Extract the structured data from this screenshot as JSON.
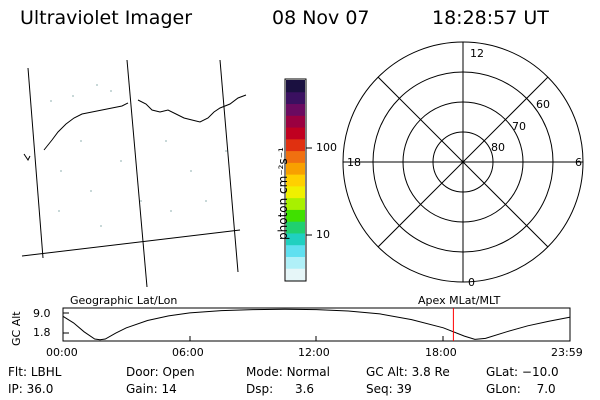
{
  "header": {
    "title": "Ultraviolet Imager",
    "date": "08 Nov 07",
    "time": "18:28:57 UT"
  },
  "colorbar": {
    "unit_label": "photon cm⁻²s⁻¹",
    "ticks": [
      "100",
      "10"
    ],
    "colors": [
      "#1a1040",
      "#3a1060",
      "#6a0a60",
      "#9a0040",
      "#c00020",
      "#e03010",
      "#f07010",
      "#f8a000",
      "#ffd000",
      "#f0f000",
      "#a8f000",
      "#40e000",
      "#20d070",
      "#20d0c0",
      "#60e0f0",
      "#b0f0f8",
      "#e6f6f8"
    ]
  },
  "polar_plot": {
    "mlt_labels": [
      "12",
      "18",
      "6",
      "0"
    ],
    "lat_labels": [
      "60",
      "70",
      "80"
    ]
  },
  "timeline": {
    "left_caption": "Geographic Lat/Lon",
    "right_caption": "Apex MLat/MLT",
    "axis_title": "GC Alt",
    "y_ticks": [
      "9.0",
      "1.8"
    ],
    "x_ticks": [
      "00:00",
      "06:00",
      "12:00",
      "18:00",
      "23:59"
    ],
    "marker_color": "#ff0000",
    "altitude_curve": [
      {
        "t": 0.0,
        "alt": 7.5
      },
      {
        "t": 0.5,
        "alt": 5.5
      },
      {
        "t": 1.0,
        "alt": 2.8
      },
      {
        "t": 1.5,
        "alt": 0.6
      },
      {
        "t": 1.75,
        "alt": 0.4
      },
      {
        "t": 2.0,
        "alt": 0.6
      },
      {
        "t": 2.5,
        "alt": 2.4
      },
      {
        "t": 3.0,
        "alt": 4.0
      },
      {
        "t": 4.0,
        "alt": 6.2
      },
      {
        "t": 5.0,
        "alt": 7.6
      },
      {
        "t": 6.0,
        "alt": 8.5
      },
      {
        "t": 7.5,
        "alt": 9.2
      },
      {
        "t": 9.0,
        "alt": 9.5
      },
      {
        "t": 10.5,
        "alt": 9.6
      },
      {
        "t": 12.0,
        "alt": 9.5
      },
      {
        "t": 13.5,
        "alt": 9.1
      },
      {
        "t": 15.0,
        "alt": 8.2
      },
      {
        "t": 16.5,
        "alt": 6.5
      },
      {
        "t": 18.0,
        "alt": 4.0
      },
      {
        "t": 19.0,
        "alt": 1.5
      },
      {
        "t": 19.5,
        "alt": 0.5
      },
      {
        "t": 20.0,
        "alt": 0.8
      },
      {
        "t": 21.0,
        "alt": 2.8
      },
      {
        "t": 22.0,
        "alt": 4.6
      },
      {
        "t": 23.0,
        "alt": 6.0
      },
      {
        "t": 23.98,
        "alt": 7.2
      }
    ],
    "marker_time": 18.48
  },
  "footer": {
    "row1": [
      {
        "label": "Flt:",
        "value": "LBHL"
      },
      {
        "label": "Door:",
        "value": "Open"
      },
      {
        "label": "Mode:",
        "value": "Normal"
      },
      {
        "label": "GC Alt:",
        "value": "3.8 Re"
      },
      {
        "label": "GLat:",
        "value": "−10.0"
      }
    ],
    "row2": [
      {
        "label": "IP:",
        "value": "36.0"
      },
      {
        "label": "Gain:",
        "value": "14"
      },
      {
        "label": "Dsp:",
        "value": "3.6"
      },
      {
        "label": "Seq:",
        "value": "39"
      },
      {
        "label": "GLon:",
        "value": "7.0"
      }
    ]
  }
}
